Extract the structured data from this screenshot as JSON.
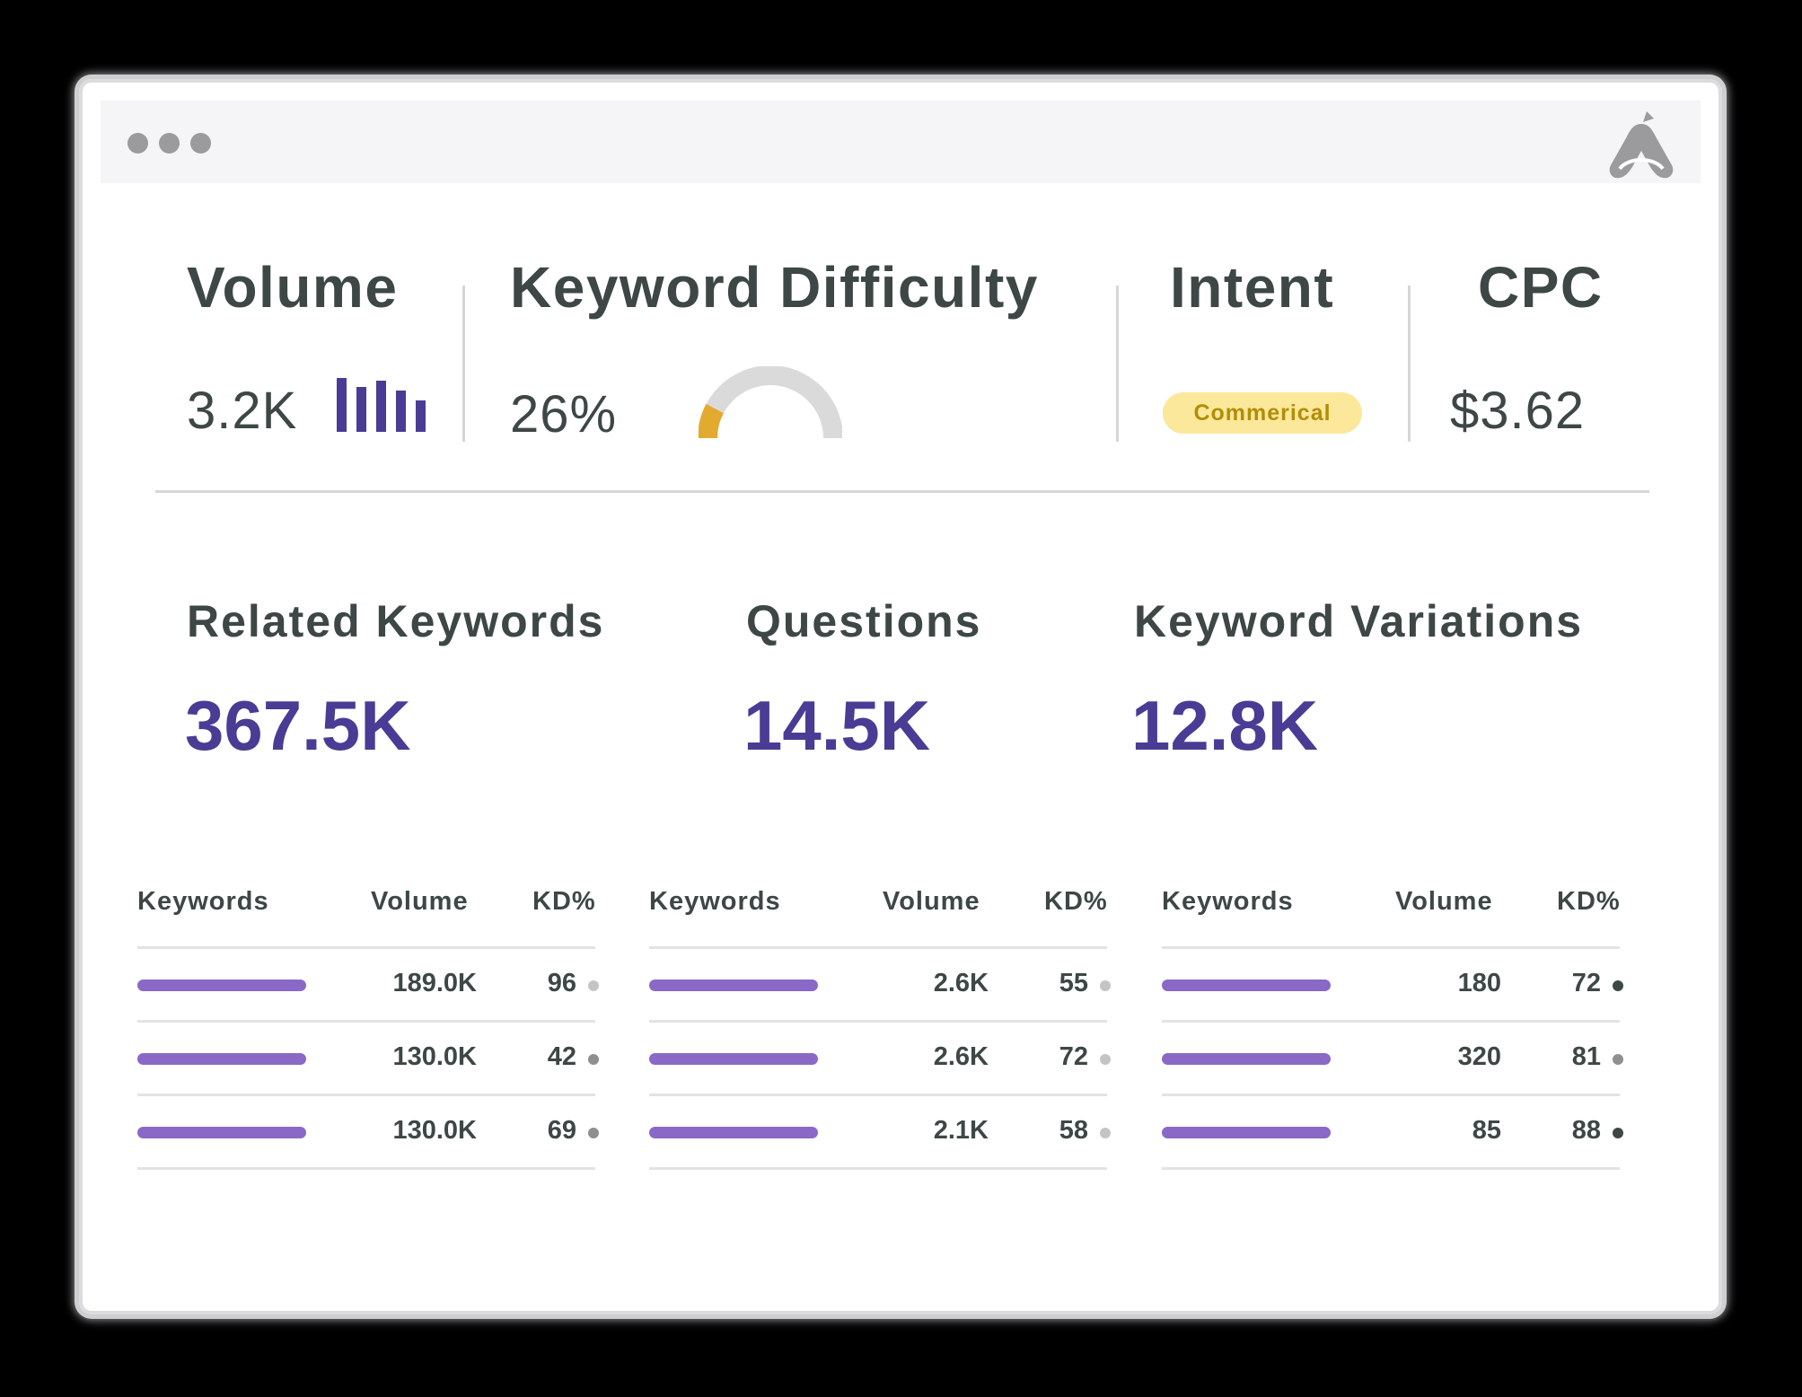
{
  "window": {
    "dot_color": "#9b9b9e"
  },
  "metrics": {
    "volume": {
      "label": "Volume",
      "value": "3.2K",
      "icon": "bar-chart-icon"
    },
    "difficulty": {
      "label": "Keyword Difficulty",
      "value": "26%",
      "gauge_percent": 26,
      "gauge_color": "#e2ab30",
      "track_color": "#dadada"
    },
    "intent": {
      "label": "Intent",
      "badge": "Commerical"
    },
    "cpc": {
      "label": "CPC",
      "value": "$3.62"
    }
  },
  "stats": {
    "related": {
      "label": "Related Keywords",
      "value": "367.5K"
    },
    "questions": {
      "label": "Questions",
      "value": "14.5K"
    },
    "variations": {
      "label": "Keyword Variations",
      "value": "12.8K"
    }
  },
  "tables": [
    {
      "headers": {
        "keywords": "Keywords",
        "volume": "Volume",
        "kd": "KD%"
      },
      "rows": [
        {
          "volume": "189.0K",
          "kd": "96",
          "dot": "light"
        },
        {
          "volume": "130.0K",
          "kd": "42",
          "dot": "medium"
        },
        {
          "volume": "130.0K",
          "kd": "69",
          "dot": "medium"
        }
      ]
    },
    {
      "headers": {
        "keywords": "Keywords",
        "volume": "Volume",
        "kd": "KD%"
      },
      "rows": [
        {
          "volume": "2.6K",
          "kd": "55",
          "dot": "light"
        },
        {
          "volume": "2.6K",
          "kd": "72",
          "dot": "light"
        },
        {
          "volume": "2.1K",
          "kd": "58",
          "dot": "light"
        }
      ]
    },
    {
      "headers": {
        "keywords": "Keywords",
        "volume": "Volume",
        "kd": "KD%"
      },
      "rows": [
        {
          "volume": "180",
          "kd": "72",
          "dot": "dark"
        },
        {
          "volume": "320",
          "kd": "81",
          "dot": "medium"
        },
        {
          "volume": "85",
          "kd": "88",
          "dot": "dark"
        }
      ]
    }
  ],
  "colors": {
    "accent": "#4a3c94",
    "bar": "#8a68c6",
    "text": "#3d4746",
    "dot_light": "#c4c4c4",
    "dot_medium": "#8f8f8f",
    "dot_dark": "#3d4746"
  }
}
